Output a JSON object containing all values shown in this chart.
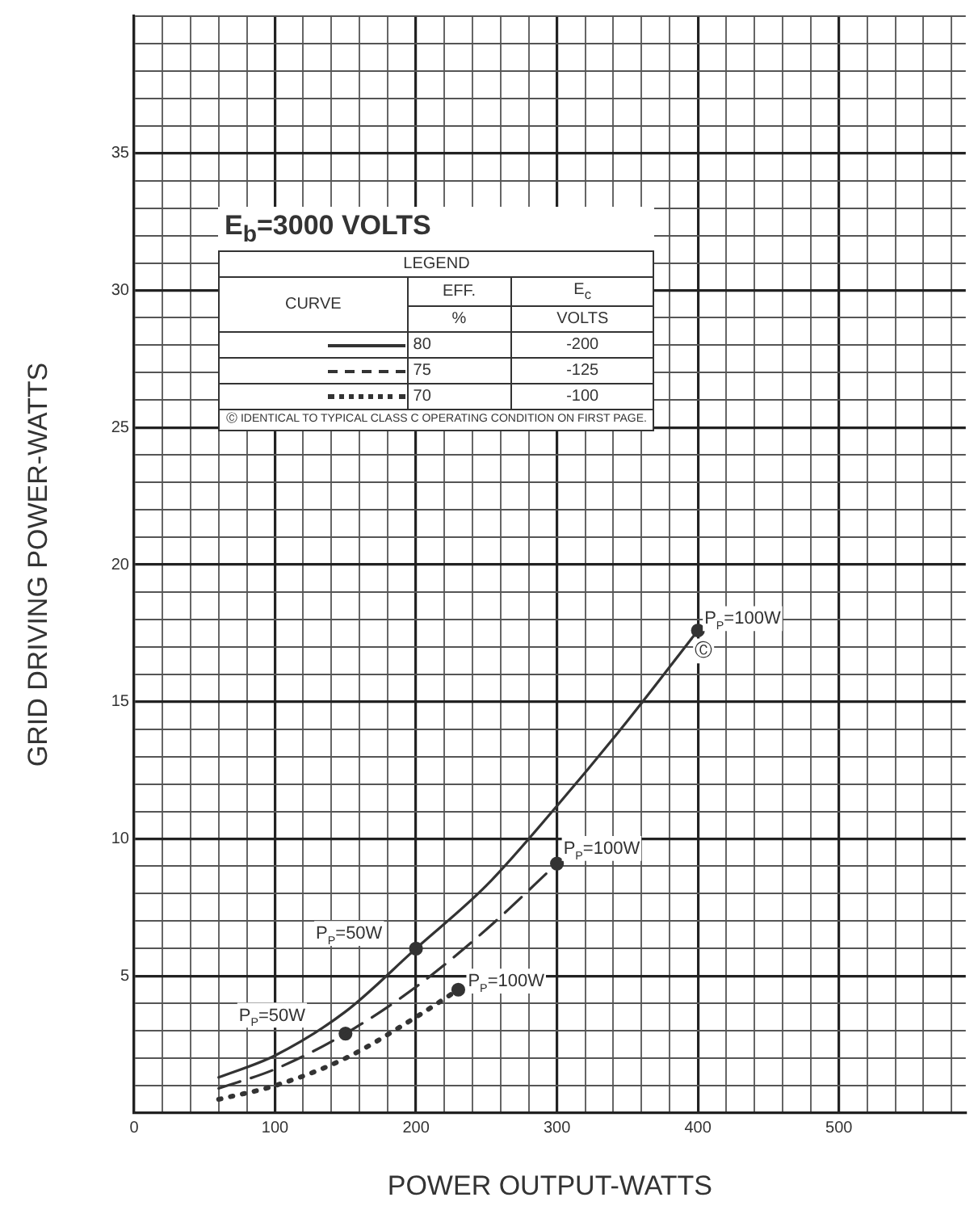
{
  "chart_data": {
    "type": "line",
    "title": "E$_{b}$=3000 VOLTS",
    "legend_title": "LEGEND",
    "xlabel": "POWER OUTPUT-WATTS",
    "ylabel": "GRID DRIVING POWER-WATTS",
    "xlim": [
      0,
      590
    ],
    "ylim": [
      0,
      40
    ],
    "xticks": [
      0,
      {
        "value": 20,
        "label": null
      },
      {
        "value": 40,
        "label": null
      },
      {
        "value": 60,
        "label": null
      },
      {
        "value": 80,
        "label": null
      },
      100,
      {
        "value": 120,
        "label": null
      },
      {
        "value": 140,
        "label": null
      },
      {
        "value": 160,
        "label": null
      },
      {
        "value": 180,
        "label": null
      },
      200,
      {
        "value": 220,
        "label": null
      },
      {
        "value": 240,
        "label": null
      },
      {
        "value": 260,
        "label": null
      },
      {
        "value": 280,
        "label": null
      },
      300,
      {
        "value": 320,
        "label": null
      },
      {
        "value": 340,
        "label": null
      },
      {
        "value": 360,
        "label": null
      },
      {
        "value": 380,
        "label": null
      },
      400,
      {
        "value": 420,
        "label": null
      },
      {
        "value": 440,
        "label": null
      },
      {
        "value": 460,
        "label": null
      },
      {
        "value": 480,
        "label": null
      },
      500,
      {
        "value": 520,
        "label": null
      },
      {
        "value": 540,
        "label": null
      },
      {
        "value": 560,
        "label": null
      },
      {
        "value": 580,
        "label": null
      }
    ],
    "yticks": [
      {
        "value": 0,
        "label": null
      },
      {
        "value": 1,
        "label": null
      },
      {
        "value": 2,
        "label": null
      },
      {
        "value": 3,
        "label": null
      },
      {
        "value": 4,
        "label": null
      },
      5,
      {
        "value": 6,
        "label": null
      },
      {
        "value": 7,
        "label": null
      },
      {
        "value": 8,
        "label": null
      },
      {
        "value": 9,
        "label": null
      },
      10,
      {
        "value": 11,
        "label": null
      },
      {
        "value": 12,
        "label": null
      },
      {
        "value": 13,
        "label": null
      },
      {
        "value": 14,
        "label": null
      },
      15,
      {
        "value": 16,
        "label": null
      },
      {
        "value": 17,
        "label": null
      },
      {
        "value": 18,
        "label": null
      },
      {
        "value": 19,
        "label": null
      },
      20,
      {
        "value": 21,
        "label": null
      },
      {
        "value": 22,
        "label": null
      },
      {
        "value": 23,
        "label": null
      },
      {
        "value": 24,
        "label": null
      },
      25,
      {
        "value": 26,
        "label": null
      },
      {
        "value": 27,
        "label": null
      },
      {
        "value": 28,
        "label": null
      },
      {
        "value": 29,
        "label": null
      },
      30,
      {
        "value": 31,
        "label": null
      },
      {
        "value": 32,
        "label": null
      },
      {
        "value": 33,
        "label": null
      },
      {
        "value": 34,
        "label": null
      },
      35,
      {
        "value": 36,
        "label": null
      },
      {
        "value": 37,
        "label": null
      },
      {
        "value": 38,
        "label": null
      },
      {
        "value": 39,
        "label": null
      },
      {
        "value": 40,
        "label": null
      }
    ],
    "grid": true,
    "legend": "top left",
    "marker": "none",
    "series": [
      {
        "name": "80",
        "color": "#333333",
        "line_style": "solid",
        "x": [
          60,
          100,
          150,
          200,
          250,
          300,
          350,
          400
        ],
        "values": [
          1.3,
          2.1,
          3.7,
          6,
          8.3,
          11.2,
          14.3,
          17.6
        ]
      },
      {
        "name": "75",
        "color": "#333333",
        "line_style": "dashed",
        "x": [
          60,
          100,
          150,
          200,
          250,
          300
        ],
        "values": [
          0.9,
          1.6,
          2.9,
          4.6,
          6.7,
          9.1
        ]
      },
      {
        "name": "70",
        "color": "#333333",
        "line_style": "dotted",
        "x": [
          60,
          100,
          150,
          200,
          230
        ],
        "values": [
          0.5,
          1.0,
          2.0,
          3.5,
          4.5
        ]
      },
      {
        "type": "scatter",
        "marker": "circle",
        "color": "#333333",
        "x": [
          200,
          150,
          400,
          300,
          230
        ],
        "values": [
          6,
          2.9,
          17.6,
          9.1,
          4.5
        ]
      }
    ],
    "annotations": [
      "CURVE",
      "EFF.",
      "%",
      "E$_{c}$",
      "VOLTS",
      "-200",
      "-125",
      "-100",
      "Ⓒ IDENTICAL TO TYPICAL CLASS C OPERATING CONDITION ON FIRST PAGE.",
      {
        "text": "P$_{P}$=50W",
        "x": 200,
        "y": 6
      },
      {
        "text": "P$_{P}$=50W",
        "x": 150,
        "y": 2.9
      },
      {
        "text": "P$_{P}$=100W",
        "x": 400,
        "y": 17.6
      },
      {
        "text": "P$_{P}$=100W",
        "x": 300,
        "y": 9.1
      },
      {
        "text": "P$_{P}$=100W",
        "x": 230,
        "y": 4.5
      },
      {
        "text": "Ⓒ",
        "x": 400,
        "y": 17.6
      }
    ]
  }
}
